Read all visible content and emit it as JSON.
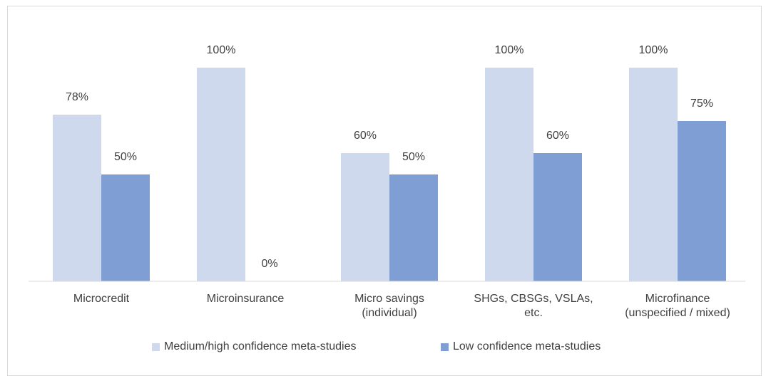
{
  "chart_data": {
    "type": "bar",
    "categories": [
      "Microcredit",
      "Microinsurance",
      "Micro savings\n(individual)",
      "SHGs, CBSGs, VSLAs,\netc.",
      "Microfinance\n(unspecified / mixed)"
    ],
    "series": [
      {
        "name": "Medium/high confidence meta-studies",
        "color": "#cfd9ee",
        "values": [
          78,
          100,
          60,
          100,
          100
        ],
        "value_labels": [
          "78%",
          "100%",
          "60%",
          "100%",
          "100%"
        ]
      },
      {
        "name": "Low confidence meta-studies",
        "color": "#7f9fd4",
        "values": [
          50,
          0,
          50,
          60,
          75
        ],
        "value_labels": [
          "50%",
          "0%",
          "50%",
          "60%",
          "75%"
        ]
      }
    ],
    "legend": "bottom"
  }
}
